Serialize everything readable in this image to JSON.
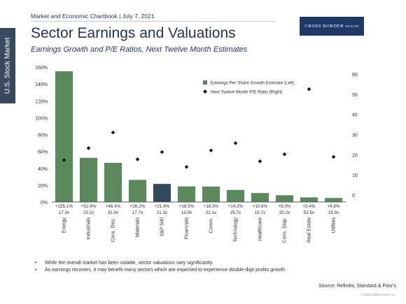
{
  "side_tab": "U.S. Stock Market",
  "header": "Market and Economic Chartbook | July 7, 2021",
  "logo": {
    "main": "CROSS BORDER",
    "small": "WEALTH"
  },
  "title": "Sector Earnings and Valuations",
  "subtitle": "Earnings Growth and P/E Ratios, Next Twelve Month Estimates",
  "notes": [
    "While the overall market has been volatile, sector valuations vary significantly.",
    "As earnings recovers, it may benefit many sectors which are expected to experience double-digit profits growth."
  ],
  "source": "Source: Refinitiv, Standard & Poor's",
  "copyright": "© 2021 Clearnomics, Inc.",
  "chart_data": {
    "type": "bar",
    "categories": [
      "Energy",
      "Industrials",
      "Cons. Disc.",
      "Materials",
      "S&P 500",
      "Financials",
      "Comm.",
      "Technology",
      "Healthcare",
      "Cons. Stap.",
      "Real Estate",
      "Utilities"
    ],
    "series": [
      {
        "name": "Earnings Per Share Growth Estimate (Left)",
        "axis": "left",
        "type": "bar",
        "values": [
          155.1,
          52.4,
          46.4,
          26.2,
          21.4,
          18.5,
          18.3,
          14.3,
          10.6,
          8.0,
          5.4,
          4.8
        ],
        "labels": [
          "+155.1%",
          "+52.4%",
          "+46.4%",
          "+26.2%",
          "+21.4%",
          "+18.5%",
          "+18.3%",
          "+14.3%",
          "+10.6%",
          "+8.0%",
          "+5.4%",
          "+4.8%"
        ],
        "color": "#5a8a5c",
        "highlight": {
          "category": "S&P 500",
          "color": "#34485f"
        }
      },
      {
        "name": "Next Twelve Month P/E Ratio (Right)",
        "axis": "right",
        "type": "scatter",
        "marker": "diamond",
        "values": [
          17.3,
          23.2,
          31.0,
          17.7,
          21.3,
          13.9,
          22.1,
          25.7,
          16.7,
          20.2,
          52.5,
          18.9
        ],
        "labels": [
          "17.3x",
          "23.2x",
          "31.0x",
          "17.7x",
          "21.3x",
          "13.9x",
          "22.1x",
          "25.7x",
          "16.7x",
          "20.2x",
          "52.5x",
          "18.9x"
        ],
        "color": "#111111"
      }
    ],
    "y_left": {
      "min": 0,
      "max": 160,
      "ticks": [
        "0%",
        "20%",
        "40%",
        "60%",
        "80%",
        "100%",
        "120%",
        "140%",
        "160%"
      ]
    },
    "y_right": {
      "min": -3.5,
      "max": 63.5,
      "ticks": [
        "0",
        "10",
        "20",
        "30",
        "40",
        "50",
        "60"
      ]
    },
    "legend_position": "top-right",
    "grid": false
  }
}
